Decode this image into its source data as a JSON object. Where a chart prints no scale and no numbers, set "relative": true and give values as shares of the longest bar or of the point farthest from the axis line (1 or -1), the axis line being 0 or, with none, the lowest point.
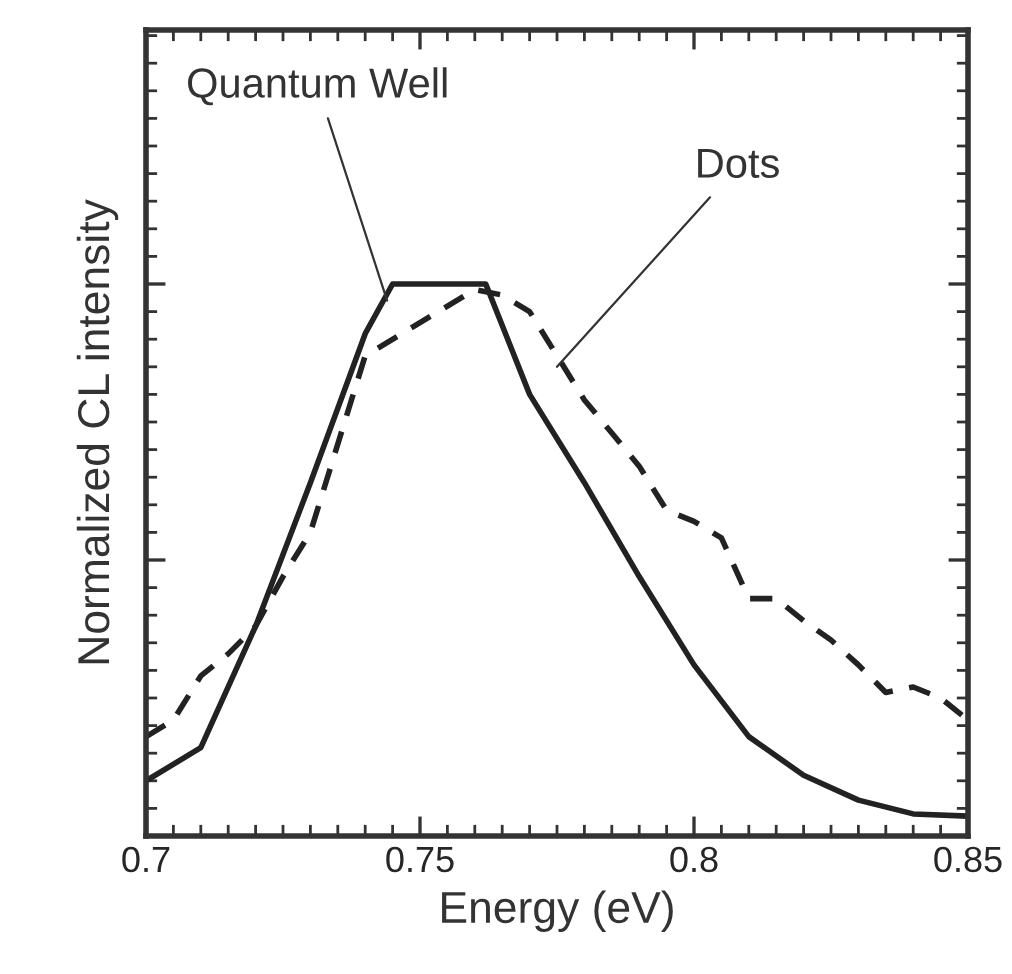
{
  "chart_data": {
    "type": "line",
    "relative": true,
    "xlabel": "Energy (eV)",
    "ylabel": "Normalized CL intensity",
    "xlim": [
      0.7,
      0.85
    ],
    "xticks": [
      0.7,
      0.75,
      0.8,
      0.85
    ],
    "series": [
      {
        "color": "#222222",
        "line_style": "solid",
        "x": [
          0.7,
          0.71,
          0.72,
          0.73,
          0.74,
          0.745,
          0.762,
          0.77,
          0.78,
          0.79,
          0.8,
          0.81,
          0.82,
          0.83,
          0.84,
          0.85
        ],
        "values": [
          0.1,
          0.16,
          0.38,
          0.64,
          0.91,
          1.0,
          1.0,
          0.8,
          0.64,
          0.47,
          0.31,
          0.18,
          0.11,
          0.065,
          0.04,
          0.036
        ]
      },
      {
        "color": "#222222",
        "line_style": "dashed",
        "x": [
          0.7,
          0.705,
          0.71,
          0.715,
          0.72,
          0.725,
          0.73,
          0.74,
          0.75,
          0.76,
          0.765,
          0.77,
          0.775,
          0.78,
          0.785,
          0.79,
          0.795,
          0.8,
          0.805,
          0.81,
          0.815,
          0.82,
          0.825,
          0.83,
          0.835,
          0.84,
          0.845,
          0.85
        ],
        "values": [
          0.18,
          0.21,
          0.29,
          0.33,
          0.38,
          0.47,
          0.55,
          0.87,
          0.93,
          0.99,
          0.98,
          0.95,
          0.87,
          0.79,
          0.73,
          0.67,
          0.59,
          0.57,
          0.54,
          0.43,
          0.43,
          0.39,
          0.355,
          0.31,
          0.26,
          0.27,
          0.25,
          0.21
        ]
      }
    ],
    "annotations": [
      {
        "text": "Quantum Well",
        "x": 0.744,
        "y": 0.97
      },
      {
        "text": "Dots",
        "x": 0.775,
        "y": 0.85
      }
    ]
  }
}
